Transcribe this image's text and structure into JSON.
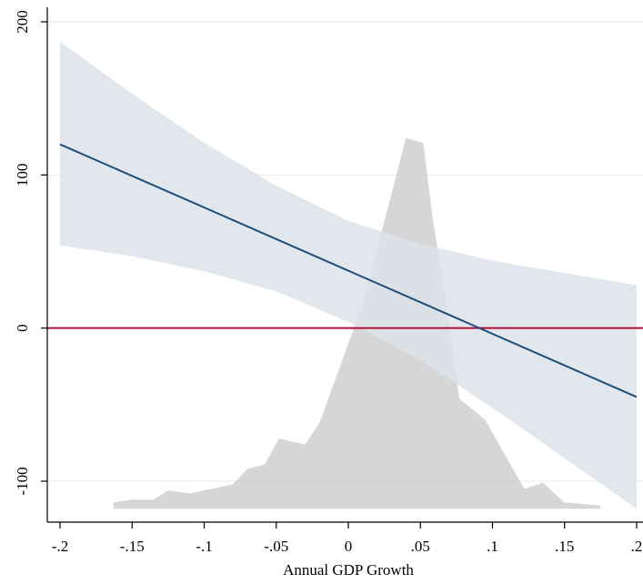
{
  "chart_data": {
    "type": "area",
    "title": "",
    "xlabel": "Annual GDP Growth",
    "ylabel": "",
    "xlim": [
      -0.2,
      0.2
    ],
    "ylim": [
      -125,
      205
    ],
    "x_ticks": [
      -0.2,
      -0.15,
      -0.1,
      -0.05,
      0,
      0.05,
      0.1,
      0.15,
      0.2
    ],
    "x_tick_labels": [
      "-.2",
      "-.15",
      "-.1",
      "-.05",
      "0",
      ".05",
      ".1",
      ".15",
      ".2"
    ],
    "y_ticks": [
      -100,
      0,
      100,
      200
    ],
    "y_tick_labels": [
      "-100",
      "0",
      "100",
      "200"
    ],
    "grid": true,
    "legend": "none",
    "colors": {
      "confidence_band": "#dde3ea",
      "fit_line": "#1f4e79",
      "zero_line": "#b0103a",
      "histogram": "#c8c8c8",
      "grid": "#e6eef2"
    },
    "fit_line": {
      "x": [
        -0.2,
        0.2
      ],
      "y": [
        120,
        -45
      ]
    },
    "confidence_band": {
      "x": [
        -0.2,
        -0.15,
        -0.1,
        -0.05,
        0,
        0.05,
        0.1,
        0.15,
        0.2
      ],
      "upper": [
        187,
        153,
        121,
        93,
        70,
        55,
        44,
        36,
        28
      ],
      "lower": [
        54,
        47,
        37,
        24,
        4,
        -21,
        -52,
        -85,
        -118
      ]
    },
    "zero_line": {
      "y": 0
    },
    "histogram": {
      "baseline": -118,
      "x": [
        -0.163,
        -0.15,
        -0.135,
        -0.125,
        -0.11,
        -0.1,
        -0.08,
        -0.07,
        -0.058,
        -0.048,
        -0.04,
        -0.03,
        -0.02,
        -0.01,
        0.0,
        0.01,
        0.025,
        0.04,
        0.052,
        0.058,
        0.067,
        0.077,
        0.095,
        0.122,
        0.135,
        0.15,
        0.165,
        0.175
      ],
      "y": [
        -114,
        -112,
        -112,
        -106,
        -108,
        -106,
        -102,
        -92,
        -89,
        -72,
        -74,
        -76,
        -62,
        -36,
        -10,
        15,
        70,
        124,
        121,
        75,
        22,
        -46,
        -60,
        -105,
        -101,
        -114,
        -115,
        -116
      ]
    }
  }
}
